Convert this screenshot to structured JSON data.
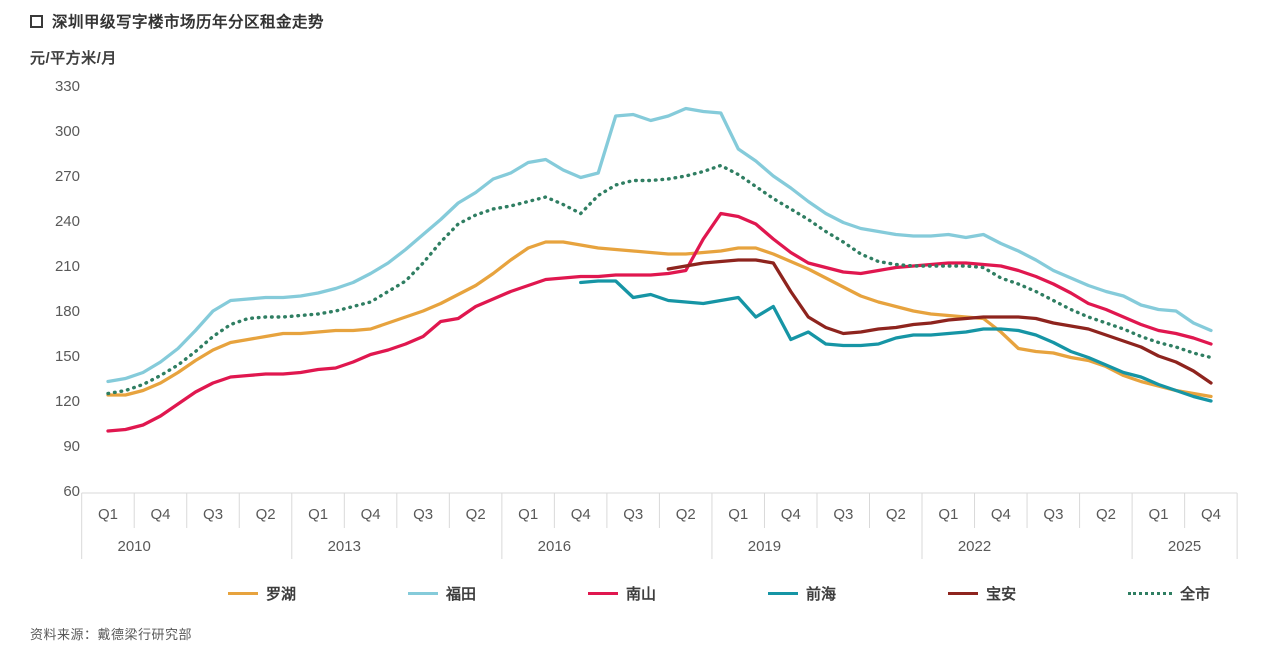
{
  "header": {
    "title": "深圳甲级写字楼市场历年分区租金走势"
  },
  "source": {
    "text": "资料来源：戴德梁行研究部"
  },
  "chart_data": {
    "type": "line",
    "title": "深圳甲级写字楼市场历年分区租金走势",
    "unit_label": "元/平方米/月",
    "grid": "off",
    "legend_position": "bottom",
    "y_axis": {
      "ticks": [
        330,
        300,
        270,
        240,
        210,
        180,
        150,
        120,
        90,
        60
      ],
      "min": 60,
      "max": 330
    },
    "x_axis": {
      "start": "2010-Q1",
      "end": "2025-Q4",
      "quarters_total": 64,
      "quarter_labels": [
        "Q1",
        "Q4",
        "Q3",
        "Q2",
        "Q1",
        "Q4",
        "Q3",
        "Q2",
        "Q1",
        "Q4",
        "Q3",
        "Q2",
        "Q1",
        "Q4",
        "Q3",
        "Q2",
        "Q1",
        "Q4",
        "Q3",
        "Q2",
        "Q1",
        "Q4"
      ],
      "years": [
        "2010",
        "2013",
        "2016",
        "2019",
        "2022",
        "2025"
      ]
    },
    "series": [
      {
        "key": "luohu",
        "name": "罗湖",
        "color": "#E7A33E",
        "style": "solid",
        "values": [
          124,
          124,
          127,
          132,
          139,
          147,
          154,
          159,
          161,
          163,
          165,
          165,
          166,
          167,
          167,
          168,
          172,
          176,
          180,
          185,
          191,
          197,
          205,
          214,
          222,
          226,
          226,
          224,
          222,
          221,
          220,
          219,
          218,
          218,
          219,
          220,
          222,
          222,
          218,
          213,
          208,
          202,
          196,
          190,
          186,
          183,
          180,
          178,
          177,
          176,
          175,
          166,
          155,
          153,
          152,
          149,
          147,
          143,
          137,
          133,
          130,
          127,
          125,
          123
        ]
      },
      {
        "key": "futian",
        "name": "福田",
        "color": "#85CBDA",
        "style": "solid",
        "values": [
          133,
          135,
          139,
          146,
          155,
          167,
          180,
          187,
          188,
          189,
          189,
          190,
          192,
          195,
          199,
          205,
          212,
          221,
          231,
          241,
          252,
          259,
          268,
          272,
          279,
          281,
          274,
          269,
          272,
          310,
          311,
          307,
          310,
          315,
          313,
          312,
          288,
          280,
          270,
          262,
          253,
          245,
          239,
          235,
          233,
          231,
          230,
          230,
          231,
          229,
          231,
          225,
          220,
          214,
          207,
          202,
          197,
          193,
          190,
          184,
          181,
          180,
          172,
          167
        ]
      },
      {
        "key": "nanshan",
        "name": "南山",
        "color": "#E0174F",
        "style": "solid",
        "values": [
          100,
          101,
          104,
          110,
          118,
          126,
          132,
          136,
          137,
          138,
          138,
          139,
          141,
          142,
          146,
          151,
          154,
          158,
          163,
          173,
          175,
          183,
          188,
          193,
          197,
          201,
          202,
          203,
          203,
          204,
          204,
          204,
          205,
          207,
          228,
          245,
          243,
          238,
          228,
          219,
          212,
          209,
          206,
          205,
          207,
          209,
          210,
          211,
          212,
          212,
          211,
          210,
          207,
          203,
          198,
          192,
          185,
          181,
          176,
          171,
          167,
          165,
          162,
          158
        ]
      },
      {
        "key": "qianhai",
        "name": "前海",
        "color": "#1695A5",
        "style": "solid",
        "values": [
          null,
          null,
          null,
          null,
          null,
          null,
          null,
          null,
          null,
          null,
          null,
          null,
          null,
          null,
          null,
          null,
          null,
          null,
          null,
          null,
          null,
          null,
          null,
          null,
          null,
          null,
          null,
          199,
          200,
          200,
          189,
          191,
          187,
          186,
          185,
          187,
          189,
          176,
          183,
          161,
          166,
          158,
          157,
          157,
          158,
          162,
          164,
          164,
          165,
          166,
          168,
          168,
          167,
          164,
          159,
          153,
          149,
          144,
          139,
          136,
          131,
          127,
          123,
          120
        ]
      },
      {
        "key": "baoan",
        "name": "宝安",
        "color": "#8E241E",
        "style": "solid",
        "values": [
          null,
          null,
          null,
          null,
          null,
          null,
          null,
          null,
          null,
          null,
          null,
          null,
          null,
          null,
          null,
          null,
          null,
          null,
          null,
          null,
          null,
          null,
          null,
          null,
          null,
          null,
          null,
          null,
          null,
          null,
          null,
          null,
          208,
          210,
          212,
          213,
          214,
          214,
          212,
          193,
          176,
          169,
          165,
          166,
          168,
          169,
          171,
          172,
          174,
          175,
          176,
          176,
          176,
          175,
          172,
          170,
          168,
          164,
          160,
          156,
          150,
          146,
          140,
          132
        ]
      },
      {
        "key": "quanshi",
        "name": "全市",
        "color": "#2F7E62",
        "style": "dotted",
        "values": [
          125,
          127,
          131,
          137,
          144,
          153,
          163,
          171,
          175,
          176,
          176,
          177,
          178,
          180,
          183,
          186,
          193,
          200,
          212,
          226,
          238,
          244,
          248,
          250,
          253,
          256,
          251,
          245,
          257,
          264,
          267,
          267,
          268,
          270,
          273,
          277,
          271,
          263,
          255,
          248,
          241,
          233,
          226,
          218,
          213,
          211,
          210,
          210,
          210,
          210,
          209,
          202,
          198,
          193,
          187,
          181,
          176,
          172,
          168,
          163,
          159,
          156,
          152,
          149
        ]
      }
    ]
  }
}
